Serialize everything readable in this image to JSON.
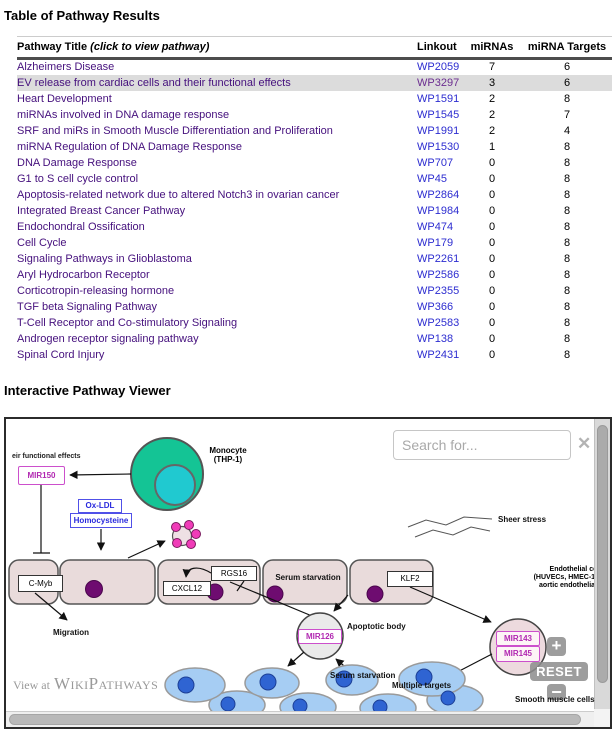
{
  "page": {
    "results": {
      "title": "Table of Pathway Results",
      "header": {
        "pathway_title": "Pathway Title",
        "pathway_title_note": "(click to view pathway)",
        "linkout": "Linkout",
        "mirnas": "miRNAs",
        "mirna_targets": "miRNA Targets"
      },
      "rows": [
        {
          "title": "Alzheimers Disease",
          "linkout": "WP2059",
          "mirnas": "7",
          "targets": "6",
          "selected": false
        },
        {
          "title": "EV release from cardiac cells and their functional effects",
          "linkout": "WP3297",
          "mirnas": "3",
          "targets": "6",
          "selected": true
        },
        {
          "title": "Heart Development",
          "linkout": "WP1591",
          "mirnas": "2",
          "targets": "8",
          "selected": false
        },
        {
          "title": "miRNAs involved in DNA damage response",
          "linkout": "WP1545",
          "mirnas": "2",
          "targets": "7",
          "selected": false
        },
        {
          "title": "SRF and miRs in Smooth Muscle Differentiation and Proliferation",
          "linkout": "WP1991",
          "mirnas": "2",
          "targets": "4",
          "selected": false
        },
        {
          "title": "miRNA Regulation of DNA Damage Response",
          "linkout": "WP1530",
          "mirnas": "1",
          "targets": "8",
          "selected": false
        },
        {
          "title": "DNA Damage Response",
          "linkout": "WP707",
          "mirnas": "0",
          "targets": "8",
          "selected": false
        },
        {
          "title": "G1 to S cell cycle control",
          "linkout": "WP45",
          "mirnas": "0",
          "targets": "8",
          "selected": false
        },
        {
          "title": "Apoptosis-related network due to altered Notch3 in ovarian cancer",
          "linkout": "WP2864",
          "mirnas": "0",
          "targets": "8",
          "selected": false
        },
        {
          "title": "Integrated Breast Cancer Pathway",
          "linkout": "WP1984",
          "mirnas": "0",
          "targets": "8",
          "selected": false
        },
        {
          "title": "Endochondral Ossification",
          "linkout": "WP474",
          "mirnas": "0",
          "targets": "8",
          "selected": false
        },
        {
          "title": "Cell Cycle",
          "linkout": "WP179",
          "mirnas": "0",
          "targets": "8",
          "selected": false
        },
        {
          "title": "Signaling Pathways in Glioblastoma",
          "linkout": "WP2261",
          "mirnas": "0",
          "targets": "8",
          "selected": false
        },
        {
          "title": "Aryl Hydrocarbon Receptor",
          "linkout": "WP2586",
          "mirnas": "0",
          "targets": "8",
          "selected": false
        },
        {
          "title": "Corticotropin-releasing hormone",
          "linkout": "WP2355",
          "mirnas": "0",
          "targets": "8",
          "selected": false
        },
        {
          "title": "TGF beta Signaling Pathway",
          "linkout": "WP366",
          "mirnas": "0",
          "targets": "8",
          "selected": false
        },
        {
          "title": "T-Cell Receptor and Co-stimulatory Signaling",
          "linkout": "WP2583",
          "mirnas": "0",
          "targets": "8",
          "selected": false
        },
        {
          "title": "Androgen receptor signaling pathway",
          "linkout": "WP138",
          "mirnas": "0",
          "targets": "8",
          "selected": false
        },
        {
          "title": "Spinal Cord Injury",
          "linkout": "WP2431",
          "mirnas": "0",
          "targets": "8",
          "selected": false
        }
      ]
    },
    "viewer": {
      "title": "Interactive Pathway Viewer",
      "search_placeholder": "Search for...",
      "close_icon": "✕",
      "watermark_prefix": "View at",
      "watermark_brand": "WikiPathways",
      "zoom_in_label": "+",
      "reset_label": "RESET",
      "zoom_out_label": "−",
      "diagram": {
        "clipped_title": "eir functional effects",
        "monocyte_label_line1": "Monocyte",
        "monocyte_label_line2": "(THP-1)",
        "mir150": "MIR150",
        "ox_ldl": "Ox-LDL",
        "homocysteine": "Homocysteine",
        "c_myb": "C-Myb",
        "cxcl12": "CXCL12",
        "rgs16": "RGS16",
        "klf2": "KLF2",
        "mir126": "MIR126",
        "mir143": "MIR143",
        "mir145": "MIR145",
        "sheer_stress": "Sheer stress",
        "serum_starvation_1": "Serum starvation",
        "serum_starvation_2": "Serum starvation",
        "apoptotic_body": "Apoptotic body",
        "migration": "Migration",
        "multiple_targets": "Multiple targets",
        "smooth_muscle": "Smooth muscle cells",
        "endothelial_line1": "Endothelial ce",
        "endothelial_line2": "(HUVECs, HMEC-1,",
        "endothelial_line3": "aortic endothelial"
      },
      "colors": {
        "monocyte_fill": "#14c495",
        "monocyte_nucleus": "#20c9d0",
        "endothelial_cell_fill": "#e9dbdb",
        "nucleus_fill": "#6e0c70",
        "smooth_cell_fill": "#a6cdf3",
        "smooth_nucleus_fill": "#2f64d2",
        "mir_box_border": "#cc4fcc",
        "mir_text": "#b128b1",
        "stimulus_border": "#5050e8",
        "vesicle_dot": "#f03cb8",
        "link_blue": "#2d2dd0",
        "title_purple": "#45107d"
      }
    }
  }
}
